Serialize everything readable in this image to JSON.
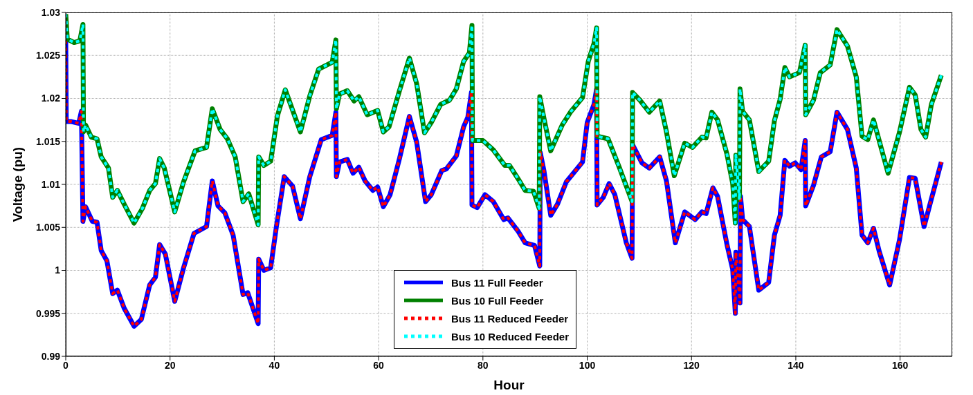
{
  "chart_data": {
    "type": "line",
    "xlabel": "Hour",
    "ylabel": "Voltage (pu)",
    "xlim": [
      0,
      170
    ],
    "xticks": [
      0,
      20,
      40,
      60,
      80,
      100,
      120,
      140,
      160
    ],
    "ylim": [
      0.99,
      1.03
    ],
    "yticks": [
      0.99,
      0.995,
      1,
      1.005,
      1.01,
      1.015,
      1.02,
      1.025,
      1.03
    ],
    "grid": true,
    "legend": "bottom",
    "series": [
      {
        "name": "Bus 11 Full Feeder",
        "color": "#0000ff",
        "line_style": "solid",
        "x": [
          0,
          0.1,
          1.1,
          2.5,
          3,
          3.3,
          3.8,
          5.1,
          6,
          6.8,
          7.9,
          9,
          9.9,
          11.2,
          13.1,
          14.5,
          16.1,
          17.2,
          18,
          19.1,
          20.9,
          22.6,
          24.6,
          27,
          28.1,
          29.2,
          30.5,
          32.1,
          34,
          34.9,
          36.9,
          37,
          38,
          39.3,
          40.4,
          41.9,
          43.5,
          45,
          46.8,
          49,
          51.1,
          51.8,
          51.9,
          52.5,
          54,
          55.1,
          56.2,
          57.4,
          58.9,
          59.8,
          60.9,
          62.2,
          64,
          65.9,
          67.3,
          69,
          70.1,
          72.1,
          73,
          74.9,
          76.3,
          77.1,
          77.8,
          77.9,
          78.9,
          80.4,
          82,
          84,
          84.8,
          86.8,
          88.1,
          89.9,
          90.9,
          91,
          91.7,
          93,
          94.3,
          96,
          99.1,
          100,
          101.3,
          101.8,
          101.9,
          103.1,
          104.2,
          105.3,
          107.5,
          108.6,
          108.7,
          110.5,
          111.9,
          113.9,
          115.2,
          116.9,
          118.7,
          120.7,
          122,
          122.8,
          124.1,
          125,
          126.8,
          127.9,
          128.4,
          128.5,
          129.3,
          129.4,
          129.8,
          131.1,
          132.9,
          134.8,
          135.9,
          137,
          137.9,
          138.8,
          139.9,
          141,
          141.8,
          141.9,
          143.4,
          144.9,
          146.6,
          147.9,
          149.9,
          151.6,
          152.7,
          153.8,
          154.9,
          156,
          158,
          159.9,
          161.8,
          162.9,
          164.6,
          166,
          167.9
        ],
        "values": [
          1.0267,
          1.0173,
          1.0173,
          1.0171,
          1.0185,
          1.0057,
          1.0074,
          1.0057,
          1.0056,
          1.0023,
          1.0011,
          0.9973,
          0.9977,
          0.9956,
          0.9935,
          0.9943,
          0.9983,
          0.9992,
          1.003,
          1.0019,
          0.9964,
          1.0003,
          1.0043,
          1.0051,
          1.0104,
          1.0075,
          1.0067,
          1.0041,
          0.9972,
          0.9974,
          0.9938,
          1.0013,
          1,
          1.0003,
          1.0051,
          1.0109,
          1.0098,
          1.006,
          1.0109,
          1.0152,
          1.0157,
          1.0184,
          1.0109,
          1.0126,
          1.0129,
          1.0113,
          1.012,
          1.0104,
          1.0093,
          1.0097,
          1.0074,
          1.0088,
          1.013,
          1.0179,
          1.0149,
          1.008,
          1.0088,
          1.0116,
          1.0118,
          1.0133,
          1.0167,
          1.0178,
          1.0207,
          1.0076,
          1.0073,
          1.0088,
          1.008,
          1.0059,
          1.0061,
          1.0045,
          1.0032,
          1.0029,
          1.0005,
          1.0137,
          1.0116,
          1.0064,
          1.0077,
          1.0103,
          1.0126,
          1.0172,
          1.0193,
          1.0211,
          1.0076,
          1.0085,
          1.0101,
          1.0088,
          1.0032,
          1.0014,
          1.0146,
          1.0125,
          1.0119,
          1.0132,
          1.0104,
          1.0032,
          1.0068,
          1.0059,
          1.0068,
          1.0066,
          1.0096,
          1.0086,
          1.003,
          1.0001,
          0.995,
          1.0021,
          0.9962,
          1.0086,
          1.0059,
          1.0051,
          0.9977,
          0.9986,
          1.0041,
          1.0064,
          1.0128,
          1.0121,
          1.0125,
          1.0117,
          1.0151,
          1.0075,
          1.0099,
          1.0132,
          1.0138,
          1.0184,
          1.0164,
          1.0119,
          1.0041,
          1.0032,
          1.0049,
          1.0022,
          0.9983,
          1.0036,
          1.0108,
          1.0107,
          1.0051,
          1.0083,
          1.0126
        ]
      },
      {
        "name": "Bus 10 Full Feeder",
        "color": "#008000",
        "line_style": "solid",
        "x": [
          0,
          0.3,
          1.6,
          2.7,
          3.3,
          3.4,
          3.8,
          4.9,
          6,
          6.8,
          8.2,
          9,
          9.9,
          11.2,
          13.1,
          14.7,
          16.1,
          17.2,
          18,
          18.9,
          20.9,
          22.6,
          24.8,
          27,
          28.1,
          29.6,
          31,
          32.5,
          34,
          35.1,
          36.9,
          37,
          38,
          39.3,
          40.6,
          42.1,
          45,
          46.8,
          48.5,
          51.1,
          51.8,
          51.9,
          52.5,
          54,
          55.3,
          56.2,
          57.8,
          59.8,
          60.9,
          62,
          64,
          65.9,
          67.3,
          68.8,
          70.1,
          71.9,
          73.6,
          74.9,
          76.3,
          77.4,
          77.9,
          78,
          80,
          82,
          84.2,
          85.1,
          86.8,
          88.1,
          89.7,
          90.8,
          90.9,
          91.7,
          93,
          95.2,
          96.9,
          99.1,
          100.2,
          101.3,
          101.8,
          101.9,
          104,
          106.2,
          108.6,
          108.7,
          110.1,
          111.9,
          113.9,
          115.2,
          116.7,
          118.7,
          120.2,
          122,
          122.8,
          123.9,
          125,
          126.8,
          127.9,
          128.4,
          128.5,
          129.2,
          129.3,
          129.8,
          131.1,
          132.9,
          134.8,
          135.9,
          137,
          137.9,
          138.8,
          140.7,
          141.8,
          141.9,
          143.4,
          144.7,
          146.6,
          147.9,
          149.9,
          151.6,
          152.7,
          153.8,
          154.9,
          157.7,
          159.9,
          161.8,
          162.9,
          164,
          164.9,
          166,
          167.9
        ],
        "values": [
          1.0298,
          1.0269,
          1.0265,
          1.0267,
          1.0286,
          1.0161,
          1.0169,
          1.0155,
          1.0153,
          1.0132,
          1.0119,
          1.0085,
          1.0093,
          1.0077,
          1.0055,
          1.0072,
          1.0093,
          1.0101,
          1.013,
          1.0119,
          1.0068,
          1.0103,
          1.0139,
          1.0143,
          1.0188,
          1.0164,
          1.0153,
          1.0132,
          1.008,
          1.0089,
          1.0053,
          1.0132,
          1.0122,
          1.0127,
          1.018,
          1.021,
          1.0161,
          1.0203,
          1.0234,
          1.0242,
          1.0268,
          1.0188,
          1.0205,
          1.0209,
          1.0197,
          1.0202,
          1.0181,
          1.0186,
          1.0161,
          1.0167,
          1.0209,
          1.0247,
          1.0217,
          1.016,
          1.0172,
          1.0193,
          1.0198,
          1.0211,
          1.0243,
          1.0253,
          1.0285,
          1.0151,
          1.0151,
          1.014,
          1.0122,
          1.0122,
          1.0106,
          1.0093,
          1.0092,
          1.0072,
          1.0202,
          1.0177,
          1.0139,
          1.0169,
          1.0185,
          1.0201,
          1.0243,
          1.0264,
          1.0282,
          1.0156,
          1.0153,
          1.0119,
          1.008,
          1.0207,
          1.0198,
          1.0184,
          1.0197,
          1.0161,
          1.011,
          1.0148,
          1.0143,
          1.0155,
          1.0154,
          1.0184,
          1.0175,
          1.0135,
          1.0101,
          1.0055,
          1.0134,
          1.0082,
          1.0211,
          1.0185,
          1.0175,
          1.0115,
          1.0127,
          1.0174,
          1.0199,
          1.0236,
          1.0225,
          1.023,
          1.0262,
          1.0181,
          1.0198,
          1.023,
          1.0239,
          1.028,
          1.0261,
          1.0225,
          1.0156,
          1.0152,
          1.0175,
          1.0113,
          1.0161,
          1.0213,
          1.0204,
          1.0164,
          1.0155,
          1.0193,
          1.0227
        ]
      },
      {
        "name": "Bus 11 Reduced Feeder",
        "color": "#ff0000",
        "line_style": "dotted",
        "x": [
          0,
          0.1,
          1.1,
          2.5,
          3,
          3.3,
          3.8,
          5.1,
          6,
          6.8,
          7.9,
          9,
          9.9,
          11.2,
          13.1,
          14.5,
          16.1,
          17.2,
          18,
          19.1,
          20.9,
          22.6,
          24.6,
          27,
          28.1,
          29.2,
          30.5,
          32.1,
          34,
          34.9,
          36.9,
          37,
          38,
          39.3,
          40.4,
          41.9,
          43.5,
          45,
          46.8,
          49,
          51.1,
          51.8,
          51.9,
          52.5,
          54,
          55.1,
          56.2,
          57.4,
          58.9,
          59.8,
          60.9,
          62.2,
          64,
          65.9,
          67.3,
          69,
          70.1,
          72.1,
          73,
          74.9,
          76.3,
          77.1,
          77.8,
          77.9,
          78.9,
          80.4,
          82,
          84,
          84.8,
          86.8,
          88.1,
          89.9,
          90.9,
          91,
          91.7,
          93,
          94.3,
          96,
          99.1,
          100,
          101.3,
          101.8,
          101.9,
          103.1,
          104.2,
          105.3,
          107.5,
          108.6,
          108.7,
          110.5,
          111.9,
          113.9,
          115.2,
          116.9,
          118.7,
          120.7,
          122,
          122.8,
          124.1,
          125,
          126.8,
          127.9,
          128.4,
          128.5,
          129.3,
          129.4,
          129.8,
          131.1,
          132.9,
          134.8,
          135.9,
          137,
          137.9,
          138.8,
          139.9,
          141,
          141.8,
          141.9,
          143.4,
          144.9,
          146.6,
          147.9,
          149.9,
          151.6,
          152.7,
          153.8,
          154.9,
          156,
          158,
          159.9,
          161.8,
          162.9,
          164.6,
          166,
          167.9
        ],
        "values": [
          1.0267,
          1.0173,
          1.0173,
          1.0171,
          1.0185,
          1.0057,
          1.0074,
          1.0057,
          1.0056,
          1.0023,
          1.0011,
          0.9973,
          0.9977,
          0.9956,
          0.9935,
          0.9943,
          0.9983,
          0.9992,
          1.003,
          1.0019,
          0.9964,
          1.0003,
          1.0043,
          1.0051,
          1.0104,
          1.0075,
          1.0067,
          1.0041,
          0.9972,
          0.9974,
          0.9938,
          1.0013,
          1,
          1.0003,
          1.0051,
          1.0109,
          1.0098,
          1.006,
          1.0109,
          1.0152,
          1.0157,
          1.0184,
          1.0109,
          1.0126,
          1.0129,
          1.0113,
          1.012,
          1.0104,
          1.0093,
          1.0097,
          1.0074,
          1.0088,
          1.013,
          1.0179,
          1.0149,
          1.008,
          1.0088,
          1.0116,
          1.0118,
          1.0133,
          1.0167,
          1.0178,
          1.0207,
          1.0076,
          1.0073,
          1.0088,
          1.008,
          1.0059,
          1.0061,
          1.0045,
          1.0032,
          1.0029,
          1.0005,
          1.0137,
          1.0116,
          1.0064,
          1.0077,
          1.0103,
          1.0126,
          1.0172,
          1.0193,
          1.0211,
          1.0076,
          1.0085,
          1.0101,
          1.0088,
          1.0032,
          1.0014,
          1.0146,
          1.0125,
          1.0119,
          1.0132,
          1.0104,
          1.0032,
          1.0068,
          1.0059,
          1.0068,
          1.0066,
          1.0096,
          1.0086,
          1.003,
          1.0001,
          0.995,
          1.0021,
          0.9962,
          1.0086,
          1.0059,
          1.0051,
          0.9977,
          0.9986,
          1.0041,
          1.0064,
          1.0128,
          1.0121,
          1.0125,
          1.0117,
          1.0151,
          1.0075,
          1.0099,
          1.0132,
          1.0138,
          1.0184,
          1.0164,
          1.0119,
          1.0041,
          1.0032,
          1.0049,
          1.0022,
          0.9983,
          1.0036,
          1.0108,
          1.0107,
          1.0051,
          1.0083,
          1.0126
        ]
      },
      {
        "name": "Bus 10 Reduced Feeder",
        "color": "#00ffff",
        "line_style": "dotted",
        "x": [
          0,
          0.3,
          1.6,
          2.7,
          3.3,
          3.4,
          3.8,
          4.9,
          6,
          6.8,
          8.2,
          9,
          9.9,
          11.2,
          13.1,
          14.7,
          16.1,
          17.2,
          18,
          18.9,
          20.9,
          22.6,
          24.8,
          27,
          28.1,
          29.6,
          31,
          32.5,
          34,
          35.1,
          36.9,
          37,
          38,
          39.3,
          40.6,
          42.1,
          45,
          46.8,
          48.5,
          51.1,
          51.8,
          51.9,
          52.5,
          54,
          55.3,
          56.2,
          57.8,
          59.8,
          60.9,
          62,
          64,
          65.9,
          67.3,
          68.8,
          70.1,
          71.9,
          73.6,
          74.9,
          76.3,
          77.4,
          77.9,
          78,
          80,
          82,
          84.2,
          85.1,
          86.8,
          88.1,
          89.7,
          90.8,
          90.9,
          91.7,
          93,
          95.2,
          96.9,
          99.1,
          100.2,
          101.3,
          101.8,
          101.9,
          104,
          106.2,
          108.6,
          108.7,
          110.1,
          111.9,
          113.9,
          115.2,
          116.7,
          118.7,
          120.2,
          122,
          122.8,
          123.9,
          125,
          126.8,
          127.9,
          128.4,
          128.5,
          129.2,
          129.3,
          129.8,
          131.1,
          132.9,
          134.8,
          135.9,
          137,
          137.9,
          138.8,
          140.7,
          141.8,
          141.9,
          143.4,
          144.7,
          146.6,
          147.9,
          149.9,
          151.6,
          152.7,
          153.8,
          154.9,
          157.7,
          159.9,
          161.8,
          162.9,
          164,
          164.9,
          166,
          167.9
        ],
        "values": [
          1.0298,
          1.0269,
          1.0265,
          1.0267,
          1.0286,
          1.0161,
          1.0169,
          1.0155,
          1.0153,
          1.0132,
          1.0119,
          1.0085,
          1.0093,
          1.0077,
          1.0055,
          1.0072,
          1.0093,
          1.0101,
          1.013,
          1.0119,
          1.0068,
          1.0103,
          1.0139,
          1.0143,
          1.0188,
          1.0164,
          1.0153,
          1.0132,
          1.008,
          1.0089,
          1.0053,
          1.0132,
          1.0122,
          1.0127,
          1.018,
          1.021,
          1.0161,
          1.0203,
          1.0234,
          1.0242,
          1.0268,
          1.0188,
          1.0205,
          1.0209,
          1.0197,
          1.0202,
          1.0181,
          1.0186,
          1.0161,
          1.0167,
          1.0209,
          1.0247,
          1.0217,
          1.016,
          1.0172,
          1.0193,
          1.0198,
          1.0211,
          1.0243,
          1.0253,
          1.0285,
          1.0151,
          1.0151,
          1.014,
          1.0122,
          1.0122,
          1.0106,
          1.0093,
          1.0092,
          1.0072,
          1.0202,
          1.0177,
          1.0139,
          1.0169,
          1.0185,
          1.0201,
          1.0243,
          1.0264,
          1.0282,
          1.0156,
          1.0153,
          1.0119,
          1.008,
          1.0207,
          1.0198,
          1.0184,
          1.0197,
          1.0161,
          1.011,
          1.0148,
          1.0143,
          1.0155,
          1.0154,
          1.0184,
          1.0175,
          1.0135,
          1.0101,
          1.0055,
          1.0134,
          1.0082,
          1.0211,
          1.0185,
          1.0175,
          1.0115,
          1.0127,
          1.0174,
          1.0199,
          1.0236,
          1.0225,
          1.023,
          1.0262,
          1.0181,
          1.0198,
          1.023,
          1.0239,
          1.028,
          1.0261,
          1.0225,
          1.0156,
          1.0152,
          1.0175,
          1.0113,
          1.0161,
          1.0213,
          1.0204,
          1.0164,
          1.0155,
          1.0193,
          1.0227
        ]
      }
    ]
  }
}
